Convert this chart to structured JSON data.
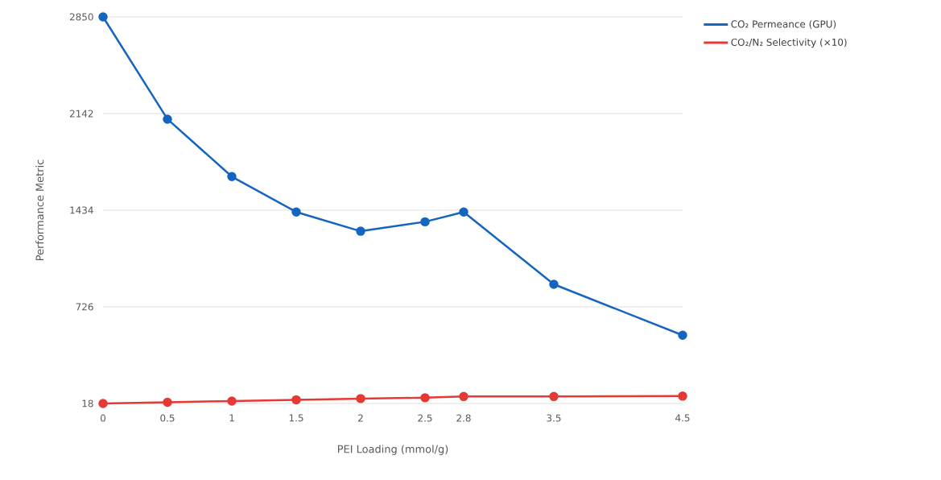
{
  "chart_data": {
    "type": "line",
    "xlabel": "PEI Loading (mmol/g)",
    "ylabel": "Performance Metric",
    "x": [
      0,
      0.5,
      1,
      1.5,
      2,
      2.5,
      2.8,
      3.5,
      4.5
    ],
    "series": [
      {
        "name": "CO₂ Permeance (GPU)",
        "color": "#1565c0",
        "values": [
          2850,
          2101,
          1680,
          1421,
          1280,
          1349,
          1421,
          891,
          518
        ]
      },
      {
        "name": "CO₂/N₂ Selectivity (×10)",
        "color": "#e53935",
        "values": [
          18,
          27,
          36,
          45,
          54,
          60,
          69,
          69,
          72
        ]
      }
    ],
    "xlim": [
      0,
      4.5
    ],
    "xticks": [
      0,
      0.5,
      1,
      1.5,
      2,
      2.5,
      2.8,
      3.5,
      4.5
    ],
    "ylim": [
      18,
      2850
    ],
    "yticks": [
      18,
      726,
      1434,
      2142,
      2850
    ],
    "grid": "y",
    "legend": "top right",
    "marker": "circle",
    "line_style": "solid"
  }
}
